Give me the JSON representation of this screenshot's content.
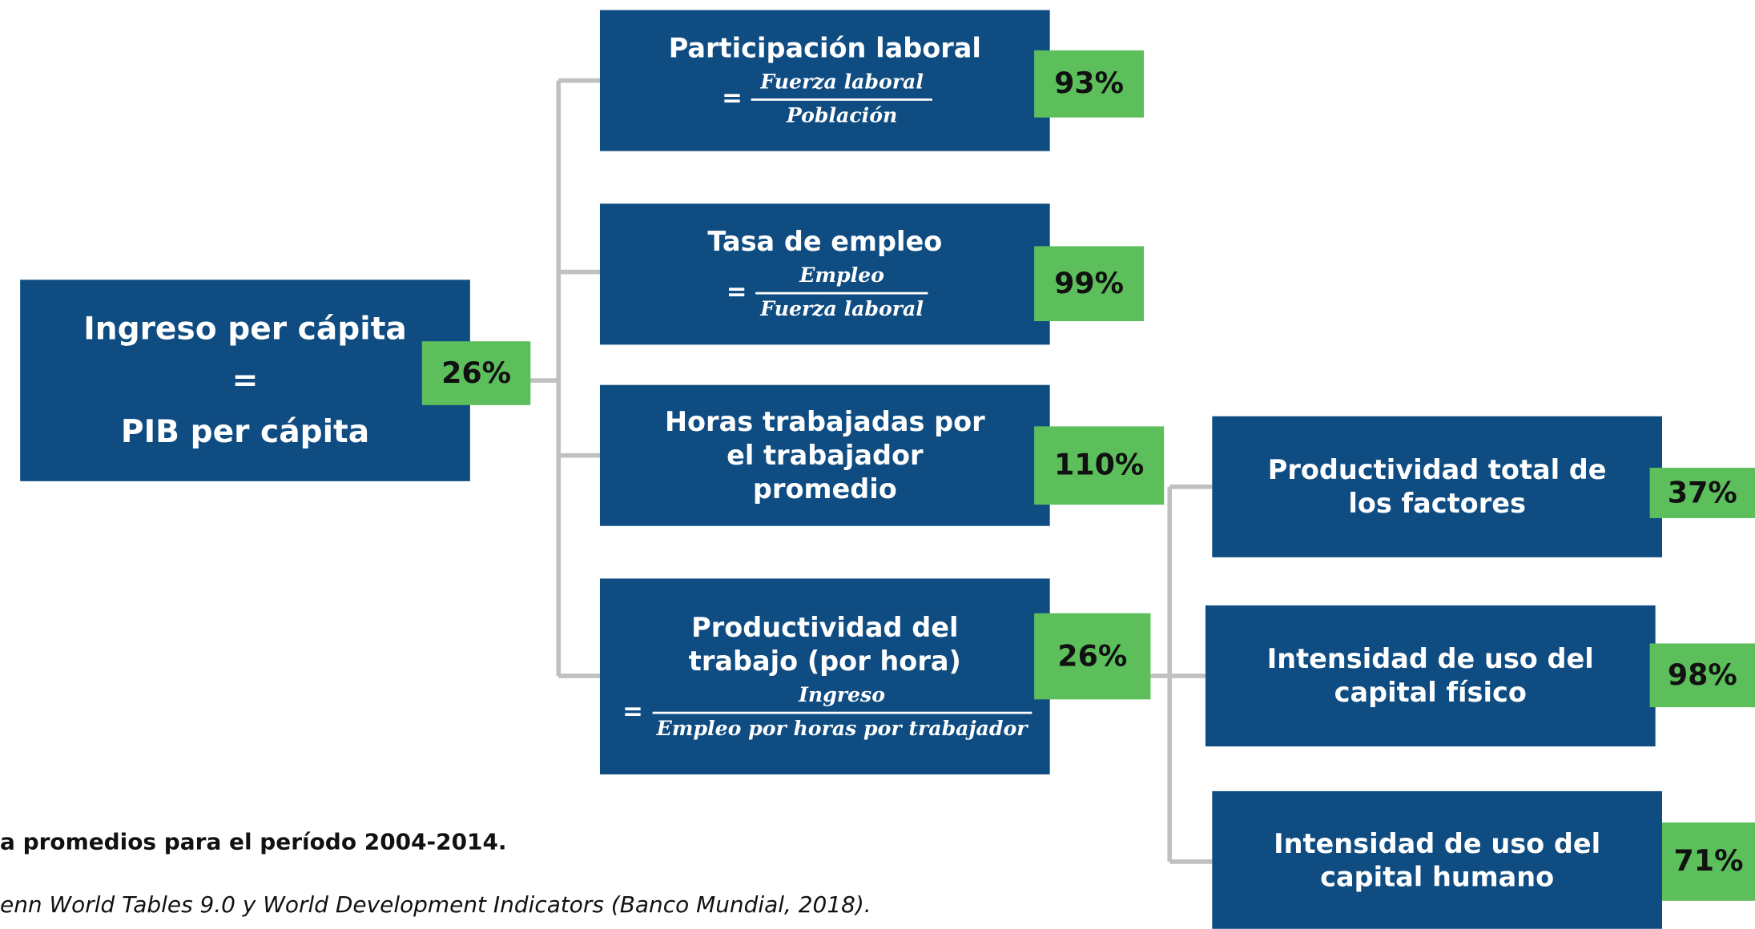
{
  "root": {
    "lines": [
      "Ingreso per cápita",
      "=",
      "PIB per cápita"
    ],
    "badge": "26%"
  },
  "nodes": [
    {
      "title": "Participación laboral",
      "numerator": "Fuerza laboral",
      "denominator": "Población",
      "badge": "93%"
    },
    {
      "title": "Tasa de empleo",
      "numerator": "Empleo",
      "denominator": "Fuerza laboral",
      "badge": "99%"
    },
    {
      "title": "Horas trabajadas por el trabajador promedio",
      "badge": "110%"
    },
    {
      "title": "Productividad del trabajo (por hora)",
      "numerator": "Ingreso",
      "denominator": "Empleo por horas por trabajador",
      "badge": "26%"
    },
    {
      "title": "Productividad total de los factores",
      "badge": "37%"
    },
    {
      "title": "Intensidad de uso del capital físico",
      "badge": "98%"
    },
    {
      "title": "Intensidad de uso del capital humano",
      "badge": "71%"
    }
  ],
  "footnotes": [
    "a promedios para el período 2004-2014.",
    "enn World Tables 9.0 y World Development Indicators (Banco Mundial, 2018)."
  ]
}
